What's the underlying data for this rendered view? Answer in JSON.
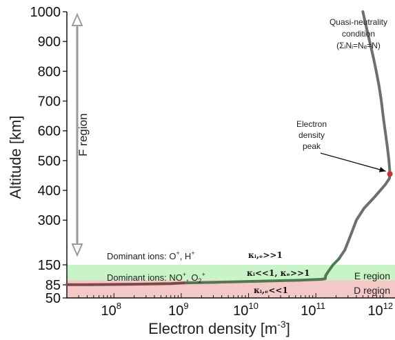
{
  "chart_data": {
    "type": "line",
    "xlabel": "Electron density [m",
    "xlabel_sup": "-3",
    "xlabel_close": "]",
    "ylabel": "Altitude [km]",
    "xscale": "log",
    "xlim": [
      20000000,
      1500000000000
    ],
    "ylim": [
      50,
      1000
    ],
    "y_axis_note": "piecewise scale: 50-150 km expanded, 150-1000 km linear",
    "x_ticks": [
      {
        "value": 100000000,
        "base": "10",
        "exp": "8"
      },
      {
        "value": 1000000000,
        "base": "10",
        "exp": "9"
      },
      {
        "value": 10000000000,
        "base": "10",
        "exp": "10"
      },
      {
        "value": 100000000000,
        "base": "10",
        "exp": "11"
      },
      {
        "value": 1000000000000,
        "base": "10",
        "exp": "12"
      }
    ],
    "y_ticks": [
      {
        "value": 1000,
        "label": "1000"
      },
      {
        "value": 900,
        "label": "900"
      },
      {
        "value": 800,
        "label": "800"
      },
      {
        "value": 700,
        "label": "700"
      },
      {
        "value": 600,
        "label": "600"
      },
      {
        "value": 500,
        "label": "500"
      },
      {
        "value": 400,
        "label": "400"
      },
      {
        "value": 300,
        "label": "300"
      },
      {
        "value": 150,
        "label": "150"
      },
      {
        "value": 85,
        "label": "85"
      },
      {
        "value": 50,
        "label": "50"
      }
    ],
    "series": [
      {
        "color": "#6e6e6e",
        "points": [
          [
            500000000000,
            1000
          ],
          [
            560000000000,
            950
          ],
          [
            630000000000,
            900
          ],
          [
            710000000000,
            850
          ],
          [
            790000000000,
            800
          ],
          [
            870000000000,
            750
          ],
          [
            940000000000,
            700
          ],
          [
            1000000000000,
            650
          ],
          [
            1070000000000,
            600
          ],
          [
            1150000000000,
            550
          ],
          [
            1220000000000,
            500
          ],
          [
            1260000000000,
            460
          ],
          [
            1240000000000,
            440
          ],
          [
            1080000000000,
            420
          ],
          [
            760000000000,
            380
          ],
          [
            520000000000,
            340
          ],
          [
            400000000000,
            300
          ],
          [
            330000000000,
            250
          ],
          [
            270000000000,
            200
          ],
          [
            220000000000,
            170
          ]
        ]
      },
      {
        "color": "#4f7a4f",
        "points": [
          [
            220000000000,
            170
          ],
          [
            180000000000,
            150
          ],
          [
            155000000000,
            130
          ],
          [
            140000000000,
            115
          ],
          [
            138000000000,
            105
          ],
          [
            120000000000,
            103
          ],
          [
            60000000000,
            100
          ],
          [
            10000000000,
            96
          ],
          [
            3000000000,
            93
          ],
          [
            1100000000,
            91
          ]
        ]
      },
      {
        "color": "#7a4a4a",
        "points": [
          [
            1100000000,
            91
          ],
          [
            700000000,
            89
          ],
          [
            200000000,
            87
          ],
          [
            60000000,
            86
          ],
          [
            30000000,
            85.5
          ],
          [
            20000000,
            85.5
          ]
        ]
      }
    ],
    "peak_marker": {
      "x": 1260000000000,
      "y": 455,
      "color": "#c83232"
    },
    "bands": [
      {
        "from": 150,
        "to": 100,
        "color": "#c8f5c8",
        "label": "E region"
      },
      {
        "from": 100,
        "to": 50,
        "color": "#f5c8c8",
        "label": "D region"
      }
    ],
    "f_region": {
      "label": "F region",
      "from": 1000,
      "to": 150
    },
    "annotations": {
      "quasi_line1": "Quasi-neutrality",
      "quasi_line2": "condition",
      "quasi_line3": "(ΣᵢNᵢ=Nₑ=N)",
      "peak_line1": "Electron",
      "peak_line2": "density",
      "peak_line3": "peak",
      "dominant_f_prefix": "Dominant ions: O",
      "dominant_f_mid": ", H",
      "dominant_f_sup": "+",
      "dominant_e_prefix": "Dominant ions: NO",
      "dominant_e_mid": ", O",
      "dominant_e_sub": "2",
      "dominant_e_sup": "+",
      "kappa_f": "κᵢ,ₑ>>1",
      "kappa_e": "κᵢ<<1, κₑ>>1",
      "kappa_d": "κᵢ,ₑ<<1"
    }
  }
}
